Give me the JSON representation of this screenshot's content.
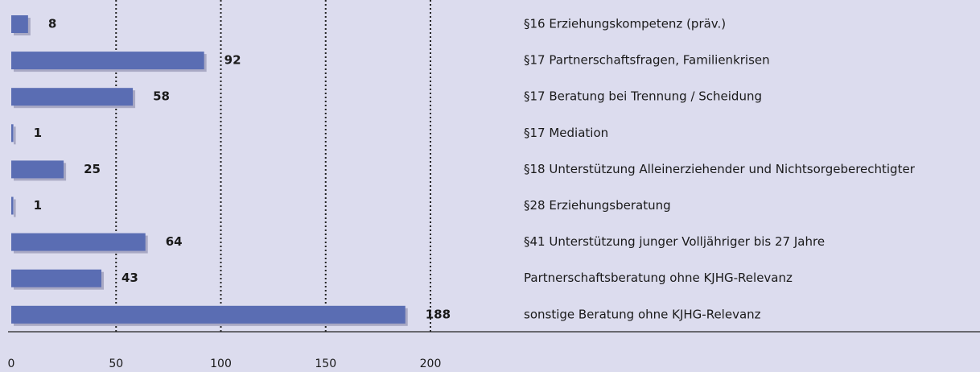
{
  "chart_data": {
    "type": "bar",
    "orientation": "horizontal",
    "categories": [
      "§16 Erziehungskompetenz (präv.)",
      "§17 Partnerschaftsfragen, Familienkrisen",
      "§17 Beratung bei Trennung / Scheidung",
      "§17 Mediation",
      "§18 Unterstützung Alleinerziehender und Nichtsorgeberechtigter",
      "§28 Erziehungsberatung",
      "§41 Unterstützung junger Volljähriger bis 27 Jahre",
      "Partnerschaftsberatung ohne KJHG-Relevanz",
      "sonstige Beratung ohne KJHG-Relevanz"
    ],
    "values": [
      8,
      92,
      58,
      1,
      25,
      1,
      64,
      43,
      188
    ],
    "color": "#5a6db3",
    "xlim": [
      0,
      200
    ],
    "xticks": [
      0,
      50,
      100,
      150,
      200
    ],
    "grid": true
  }
}
